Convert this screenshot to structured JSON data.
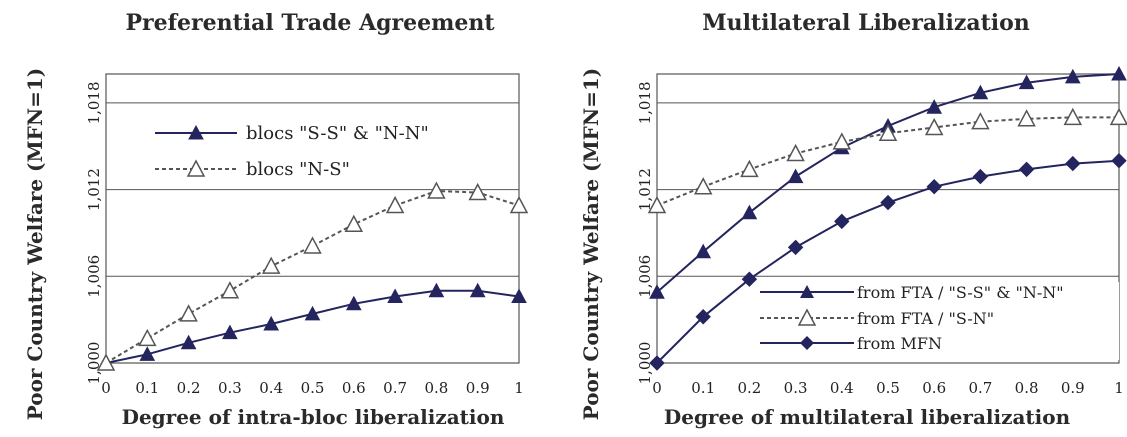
{
  "colors": {
    "navy": "#24245e",
    "gray": "#555555",
    "grid": "#555555"
  },
  "chart_data": [
    {
      "type": "line",
      "title": "Preferential Trade Agreement",
      "xlabel": "Degree of intra-bloc liberalization",
      "ylabel": "Poor Country Welfare (MFN=1)",
      "x": [
        0,
        0.1,
        0.2,
        0.3,
        0.4,
        0.5,
        0.6,
        0.7,
        0.8,
        0.9,
        1
      ],
      "x_tick_labels": [
        "0",
        "0.1",
        "0.2",
        "0.3",
        "0.4",
        "0.5",
        "0.6",
        "0.7",
        "0.8",
        "0.9",
        "1"
      ],
      "xlim": [
        0,
        1
      ],
      "ylim": [
        1.0,
        1.02
      ],
      "y_ticks": [
        1.0,
        1.006,
        1.012,
        1.018
      ],
      "y_tick_labels": [
        "1,000",
        "1,006",
        "1,012",
        "1,018"
      ],
      "grid": "horizontal",
      "legend_position": "top-left",
      "series": [
        {
          "name": "blocs \"S-S\" & \"N-N\"",
          "style": "solid",
          "marker": "triangle-filled",
          "values": [
            1.0,
            1.0006,
            1.0014,
            1.0021,
            1.0027,
            1.0034,
            1.0041,
            1.0046,
            1.005,
            1.005,
            1.0046
          ]
        },
        {
          "name": "blocs \"N-S\"",
          "style": "dashed",
          "marker": "triangle-open",
          "values": [
            1.0,
            1.0017,
            1.0034,
            1.005,
            1.0067,
            1.0081,
            1.0096,
            1.0109,
            1.0119,
            1.0118,
            1.0109
          ]
        }
      ]
    },
    {
      "type": "line",
      "title": "Multilateral Liberalization",
      "xlabel": "Degree of multilateral liberalization",
      "ylabel": "Poor Country Welfare (MFN=1)",
      "x": [
        0,
        0.1,
        0.2,
        0.3,
        0.4,
        0.5,
        0.6,
        0.7,
        0.8,
        0.9,
        1
      ],
      "x_tick_labels": [
        "0",
        "0.1",
        "0.2",
        "0.3",
        "0.4",
        "0.5",
        "0.6",
        "0.7",
        "0.8",
        "0.9",
        "1"
      ],
      "xlim": [
        0,
        1
      ],
      "ylim": [
        1.0,
        1.02
      ],
      "y_ticks": [
        1.0,
        1.006,
        1.012,
        1.018
      ],
      "y_tick_labels": [
        "1,000",
        "1,006",
        "1,012",
        "1,018"
      ],
      "grid": "horizontal",
      "legend_position": "bottom-right",
      "series": [
        {
          "name": "from FTA / \"S-S\" & \"N-N\"",
          "style": "solid",
          "marker": "triangle-filled",
          "values": [
            1.0049,
            1.0077,
            1.0104,
            1.0129,
            1.0149,
            1.0164,
            1.0177,
            1.0187,
            1.0194,
            1.0198,
            1.02
          ]
        },
        {
          "name": "from FTA / \"S-N\"",
          "style": "dashed",
          "marker": "triangle-open",
          "values": [
            1.0109,
            1.0122,
            1.0134,
            1.0145,
            1.0153,
            1.0159,
            1.0163,
            1.0167,
            1.0169,
            1.017,
            1.017
          ]
        },
        {
          "name": "from MFN",
          "style": "solid",
          "marker": "diamond-filled",
          "values": [
            1.0,
            1.0032,
            1.0058,
            1.008,
            1.0098,
            1.0111,
            1.0122,
            1.0129,
            1.0134,
            1.0138,
            1.014
          ]
        }
      ]
    }
  ]
}
